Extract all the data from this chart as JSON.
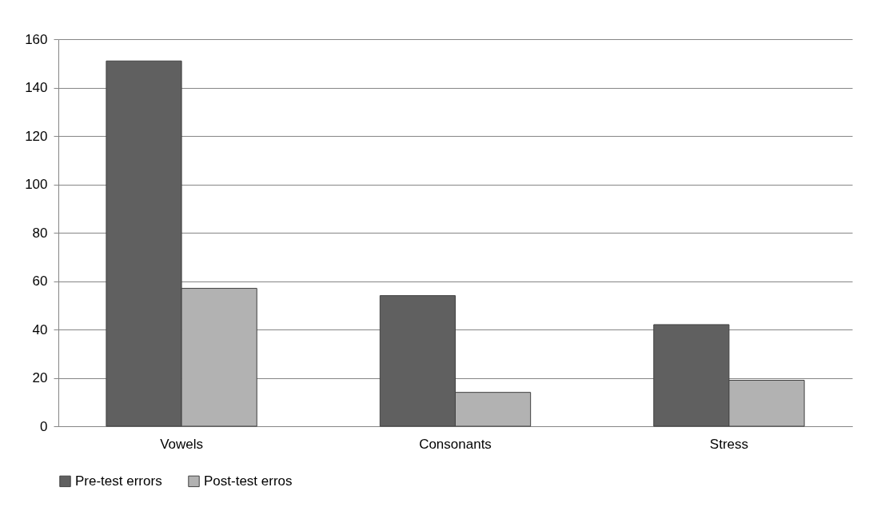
{
  "chart_data": {
    "type": "bar",
    "categories": [
      "Vowels",
      "Consonants",
      "Stress"
    ],
    "series": [
      {
        "name": "Pre-test errors",
        "color": "#606060",
        "values": [
          151,
          54,
          42
        ]
      },
      {
        "name": "Post-test erros",
        "color": "#b2b2b2",
        "values": [
          57,
          14,
          19
        ]
      }
    ],
    "ylim": [
      0,
      160
    ],
    "yticks": [
      0,
      20,
      40,
      60,
      80,
      100,
      120,
      140,
      160
    ],
    "grid": "y",
    "legend": "bottom"
  }
}
